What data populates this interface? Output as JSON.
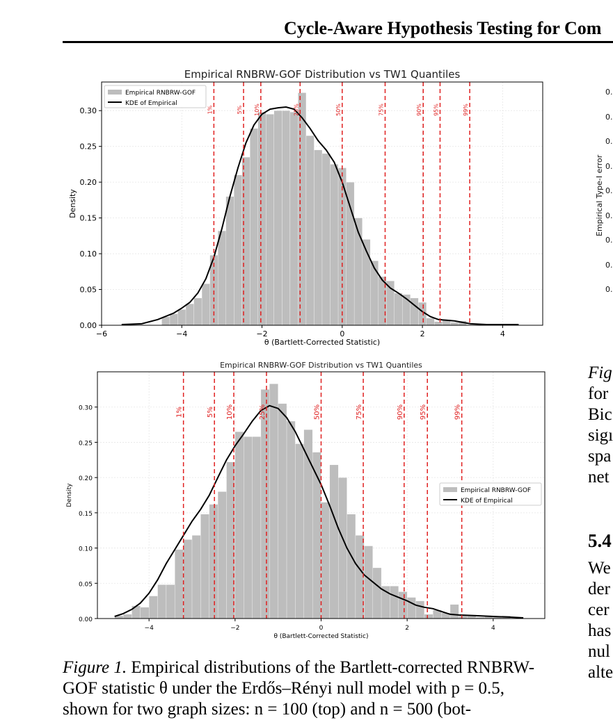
{
  "header": {
    "running_title": "Cycle-Aware Hypothesis Testing for Com"
  },
  "chart_data": [
    {
      "type": "bar",
      "title": "Empirical RNBRW-GOF Distribution vs TW1 Quantiles",
      "xlabel": "θ (Bartlett-Corrected Statistic)",
      "ylabel": "Density",
      "xlim": [
        -6,
        5
      ],
      "ylim": [
        0,
        0.34
      ],
      "xticks": [
        -6,
        -4,
        -2,
        0,
        2,
        4
      ],
      "xtick_labels": [
        "−6",
        "−4",
        "−2",
        "0",
        "2",
        "4"
      ],
      "yticks": [
        0,
        0.05,
        0.1,
        0.15,
        0.2,
        0.25,
        0.3
      ],
      "ytick_labels": [
        "0.00",
        "0.05",
        "0.10",
        "0.15",
        "0.20",
        "0.25",
        "0.30"
      ],
      "grid": true,
      "legend": {
        "position": "top-left",
        "entries": [
          "Empirical RNBRW-GOF",
          "KDE of Empirical"
        ]
      },
      "histogram": {
        "bin_start": -4.5,
        "bin_width": 0.2,
        "densities": [
          0.012,
          0.016,
          0.022,
          0.03,
          0.038,
          0.058,
          0.098,
          0.132,
          0.18,
          0.21,
          0.235,
          0.275,
          0.298,
          0.295,
          0.3,
          0.3,
          0.298,
          0.325,
          0.265,
          0.245,
          0.24,
          0.225,
          0.22,
          0.2,
          0.15,
          0.12,
          0.09,
          0.068,
          0.062,
          0.045,
          0.043,
          0.038,
          0.032,
          0.01,
          0.005,
          0.008,
          0.004,
          0.006
        ]
      },
      "kde": {
        "x": [
          -5.5,
          -5.0,
          -4.6,
          -4.2,
          -4.0,
          -3.8,
          -3.6,
          -3.4,
          -3.2,
          -3.0,
          -2.8,
          -2.6,
          -2.4,
          -2.2,
          -2.0,
          -1.8,
          -1.6,
          -1.4,
          -1.2,
          -1.0,
          -0.8,
          -0.6,
          -0.4,
          -0.2,
          0.0,
          0.2,
          0.4,
          0.6,
          0.8,
          1.0,
          1.2,
          1.4,
          1.6,
          1.8,
          2.0,
          2.2,
          2.4,
          2.6,
          2.8,
          3.0,
          3.2,
          3.6,
          4.0,
          4.4
        ],
        "y": [
          0.001,
          0.002,
          0.008,
          0.017,
          0.024,
          0.032,
          0.045,
          0.065,
          0.095,
          0.135,
          0.18,
          0.22,
          0.255,
          0.28,
          0.295,
          0.302,
          0.304,
          0.305,
          0.302,
          0.29,
          0.275,
          0.258,
          0.245,
          0.228,
          0.2,
          0.165,
          0.13,
          0.104,
          0.08,
          0.063,
          0.052,
          0.045,
          0.037,
          0.028,
          0.019,
          0.012,
          0.008,
          0.007,
          0.006,
          0.004,
          0.002,
          0.001,
          0.001,
          0.001
        ]
      },
      "quantiles": [
        {
          "label": "1%",
          "x": -3.2
        },
        {
          "label": "5%",
          "x": -2.46
        },
        {
          "label": "10%",
          "x": -2.03
        },
        {
          "label": "25%",
          "x": -1.05
        },
        {
          "label": "50%",
          "x": 0.0
        },
        {
          "label": "75%",
          "x": 1.07
        },
        {
          "label": "90%",
          "x": 2.02
        },
        {
          "label": "95%",
          "x": 2.44
        },
        {
          "label": "99%",
          "x": 3.18
        }
      ],
      "colors": {
        "bars": "#bdbdbd",
        "kde": "#000000",
        "quantile_lines": "#e02020"
      }
    },
    {
      "type": "bar",
      "title": "Empirical RNBRW-GOF Distribution vs TW1 Quantiles",
      "xlabel": "θ (Bartlett-Corrected Statistic)",
      "ylabel": "Density",
      "xlim": [
        -5.2,
        5.2
      ],
      "ylim": [
        0,
        0.35
      ],
      "xticks": [
        -4,
        -2,
        0,
        2,
        4
      ],
      "xtick_labels": [
        "−4",
        "−2",
        "0",
        "2",
        "4"
      ],
      "yticks": [
        0,
        0.05,
        0.1,
        0.15,
        0.2,
        0.25,
        0.3
      ],
      "ytick_labels": [
        "0.00",
        "0.05",
        "0.10",
        "0.15",
        "0.20",
        "0.25",
        "0.30"
      ],
      "grid": true,
      "legend": {
        "position": "center-right",
        "entries": [
          "Empirical RNBRW-GOF",
          "KDE of Empirical"
        ]
      },
      "histogram": {
        "bin_start": -4.8,
        "bin_width": 0.2,
        "densities": [
          0.004,
          0.006,
          0.018,
          0.016,
          0.032,
          0.048,
          0.048,
          0.098,
          0.112,
          0.118,
          0.148,
          0.162,
          0.18,
          0.222,
          0.265,
          0.258,
          0.258,
          0.325,
          0.333,
          0.305,
          0.28,
          0.248,
          0.268,
          0.236,
          0.165,
          0.218,
          0.2,
          0.148,
          0.118,
          0.103,
          0.072,
          0.046,
          0.046,
          0.038,
          0.03,
          0.025,
          0.006,
          0.012,
          0.008,
          0.02,
          0.004,
          0.005,
          0.002,
          0.003,
          0.003,
          0.004
        ]
      },
      "kde": {
        "x": [
          -4.8,
          -4.6,
          -4.4,
          -4.2,
          -4.0,
          -3.8,
          -3.6,
          -3.4,
          -3.2,
          -3.0,
          -2.8,
          -2.6,
          -2.4,
          -2.2,
          -2.0,
          -1.8,
          -1.6,
          -1.4,
          -1.2,
          -1.0,
          -0.8,
          -0.6,
          -0.4,
          -0.2,
          0.0,
          0.2,
          0.4,
          0.6,
          0.8,
          1.0,
          1.2,
          1.4,
          1.6,
          1.8,
          2.0,
          2.2,
          2.4,
          2.6,
          2.8,
          3.0,
          3.2,
          3.6,
          4.0,
          4.4,
          4.7
        ],
        "y": [
          0.003,
          0.007,
          0.013,
          0.022,
          0.036,
          0.055,
          0.078,
          0.098,
          0.118,
          0.138,
          0.155,
          0.175,
          0.2,
          0.225,
          0.245,
          0.262,
          0.28,
          0.295,
          0.302,
          0.298,
          0.285,
          0.265,
          0.24,
          0.215,
          0.19,
          0.16,
          0.128,
          0.1,
          0.078,
          0.062,
          0.052,
          0.042,
          0.035,
          0.03,
          0.025,
          0.019,
          0.016,
          0.014,
          0.01,
          0.006,
          0.005,
          0.004,
          0.003,
          0.002,
          0.001
        ]
      },
      "quantiles": [
        {
          "label": "1%",
          "x": -3.2
        },
        {
          "label": "5%",
          "x": -2.48
        },
        {
          "label": "10%",
          "x": -2.03
        },
        {
          "label": "25%",
          "x": -1.27
        },
        {
          "label": "50%",
          "x": 0.0
        },
        {
          "label": "75%",
          "x": 0.98
        },
        {
          "label": "90%",
          "x": 1.93
        },
        {
          "label": "95%",
          "x": 2.47
        },
        {
          "label": "99%",
          "x": 3.27
        }
      ],
      "colors": {
        "bars": "#bdbdbd",
        "kde": "#000000",
        "quantile_lines": "#e02020"
      }
    }
  ],
  "right_plot": {
    "ylabel": "Empirical Type-I error",
    "tick_prefixes": [
      "0.",
      "0.",
      "0.",
      "0.",
      "0.",
      "0.",
      "0.",
      "0.",
      "0."
    ]
  },
  "right_column": {
    "fig_label": "Fig",
    "lines": [
      "for",
      "Bic",
      "sigı",
      "spa",
      "net"
    ],
    "section_heading": "5.4",
    "body_lines": [
      "We",
      "der",
      "cer",
      "has",
      "nul",
      "alte"
    ]
  },
  "caption": {
    "label": "Figure 1.",
    "line1_text": " Empirical distributions of the Bartlett-corrected RNBRW-",
    "line2_text": "GOF statistic θ under the Erdős–Rényi null model with p = 0.5,",
    "line3_text": "shown for two graph sizes: n = 100 (top) and n = 500 (bot-"
  }
}
